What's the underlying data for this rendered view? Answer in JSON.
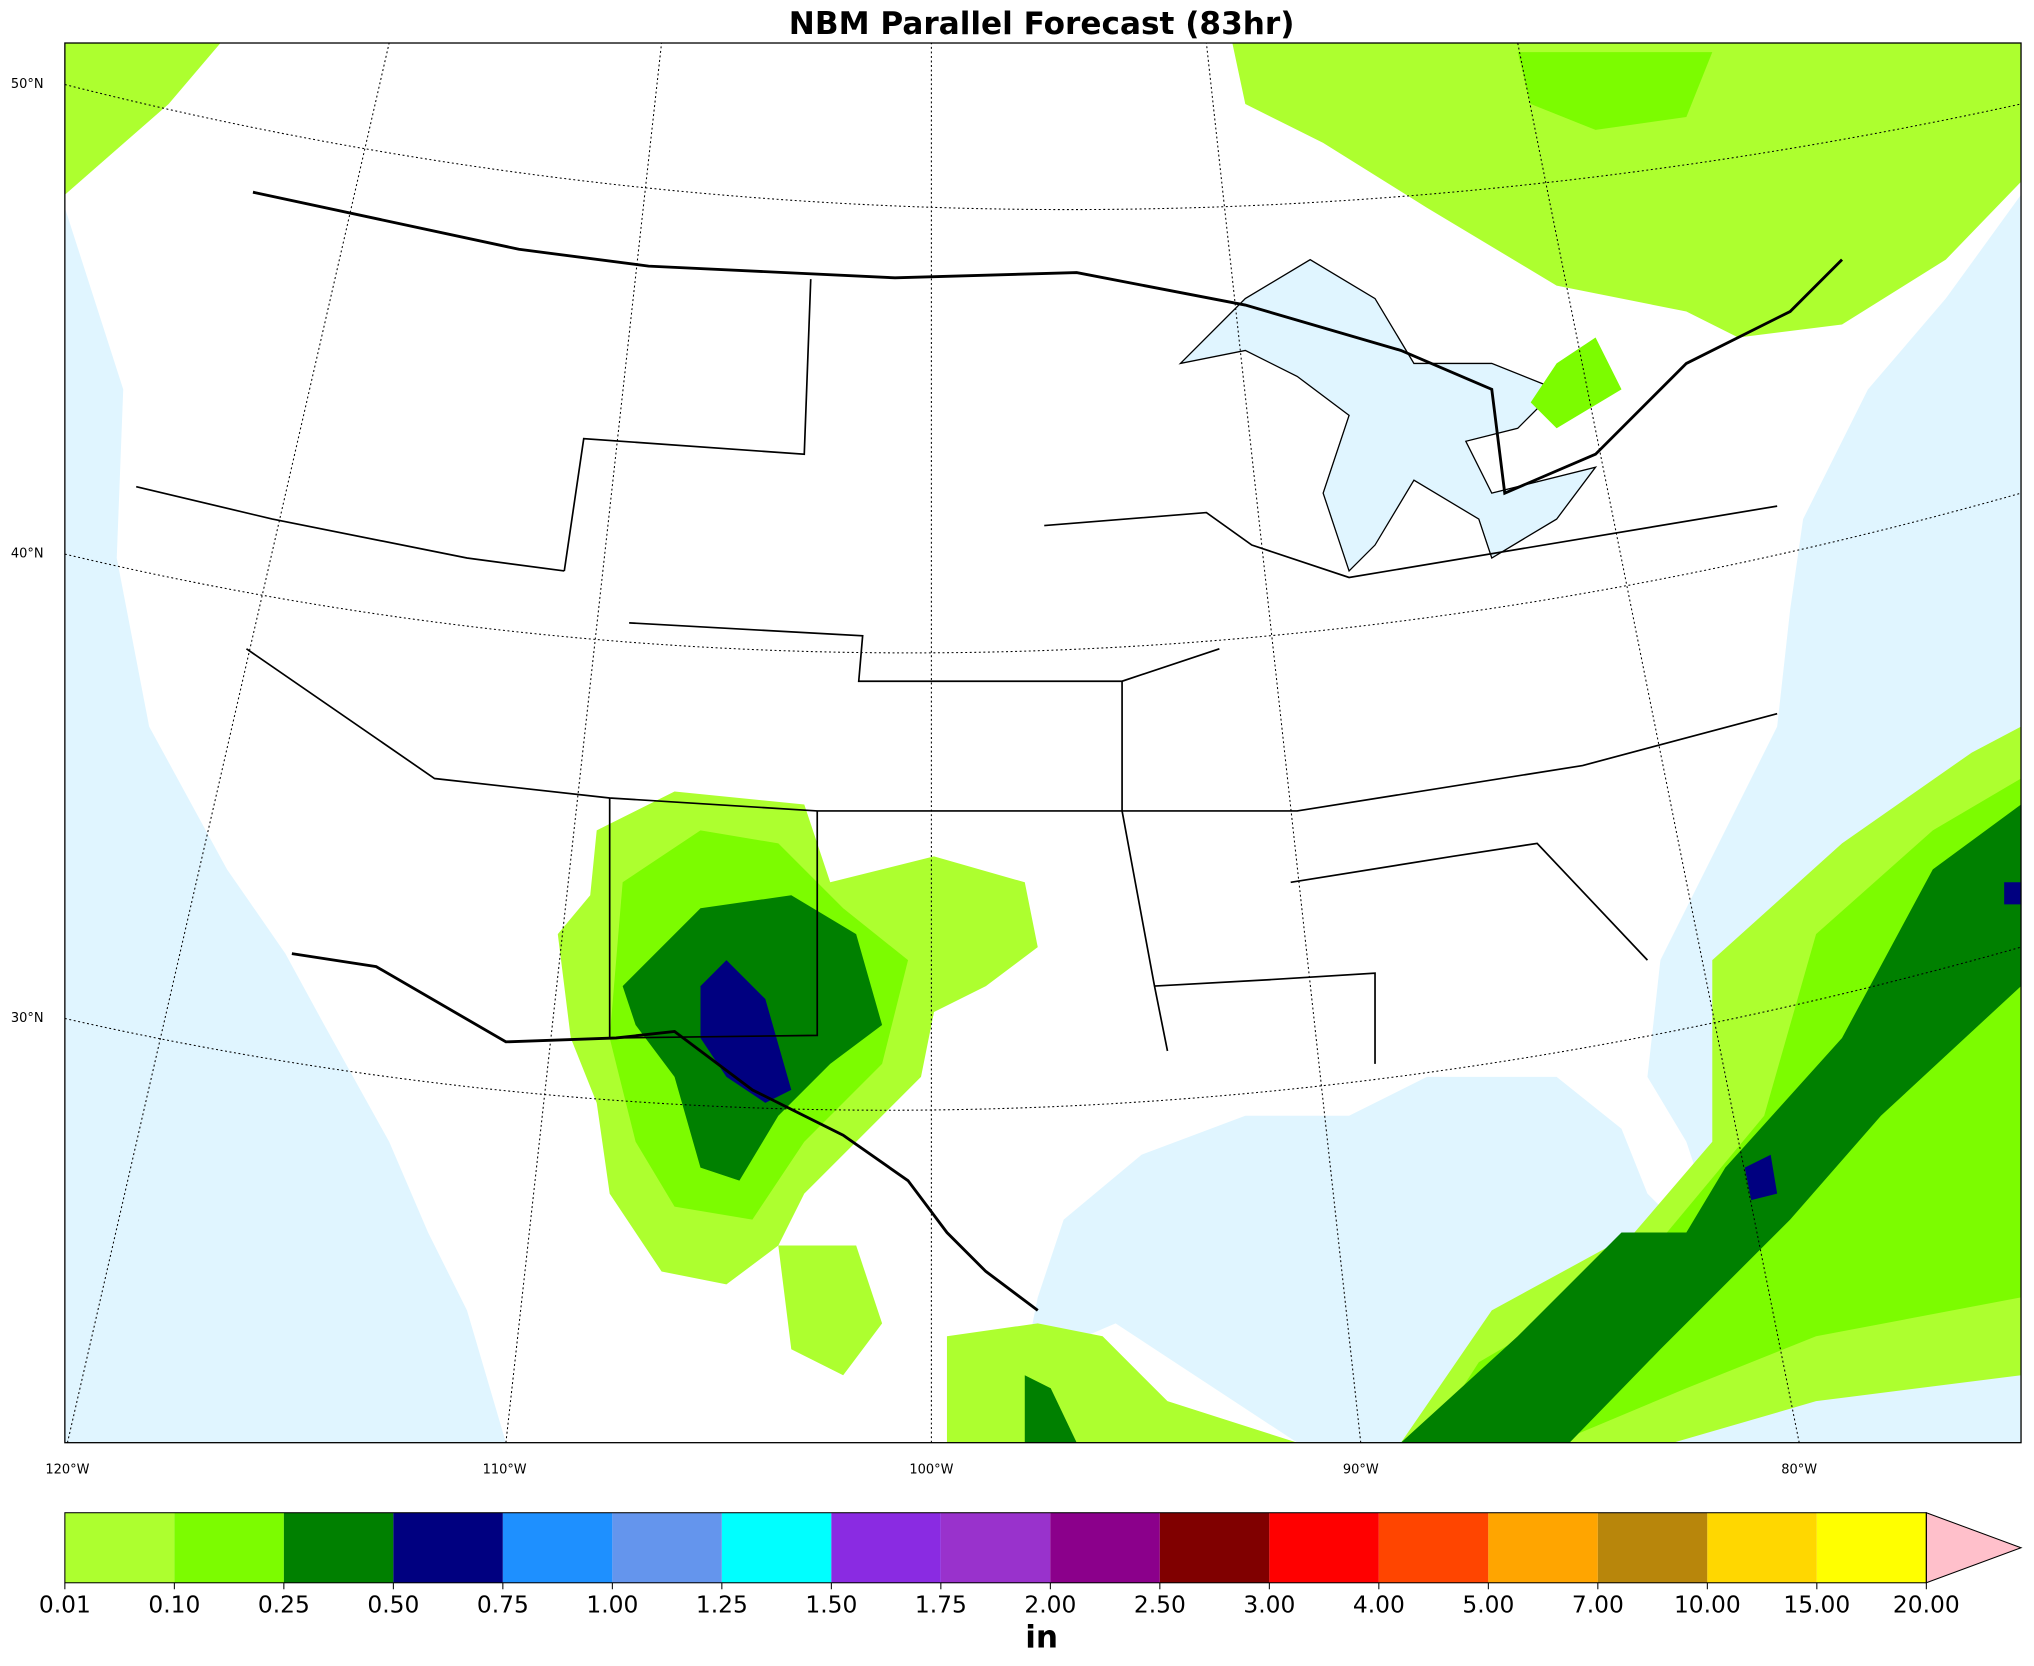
{
  "title": "NBM Parallel Forecast (83hr)",
  "map": {
    "lat_labels": [
      "50°N",
      "40°N",
      "30°N"
    ],
    "lon_labels": [
      "120°W",
      "110°W",
      "100°W",
      "90°W",
      "80°W"
    ]
  },
  "colorbar": {
    "ticks": [
      0.01,
      {
        "value": 0.1,
        "label": "0.10"
      },
      0.25,
      {
        "value": 0.5,
        "label": "0.50"
      },
      0.75,
      {
        "value": 1,
        "label": "1.00"
      },
      1.25,
      {
        "value": 1.5,
        "label": "1.50"
      },
      1.75,
      {
        "value": 2,
        "label": "2.00"
      },
      {
        "value": 2.5,
        "label": "2.50"
      },
      {
        "value": 3,
        "label": "3.00"
      },
      {
        "value": 4,
        "label": "4.00"
      },
      {
        "value": 5,
        "label": "5.00"
      },
      {
        "value": 7,
        "label": "7.00"
      },
      {
        "value": 10,
        "label": "10.00"
      },
      {
        "value": 15,
        "label": "15.00"
      },
      {
        "value": 20,
        "label": "20.00"
      }
    ],
    "colors": [
      "#adff2f",
      "#7cfc00",
      "#008000",
      "#000080",
      "#1e90ff",
      "#6495ed",
      "#00ffff",
      "#8a2be2",
      "#9932cc",
      "#8b008b",
      "#800000",
      "#ff0000",
      "#ff4500",
      "#ffa500",
      "#b8860b",
      "#ffd700",
      "#ffff00"
    ],
    "extend_color": "#ffc0cb",
    "label": "in"
  }
}
